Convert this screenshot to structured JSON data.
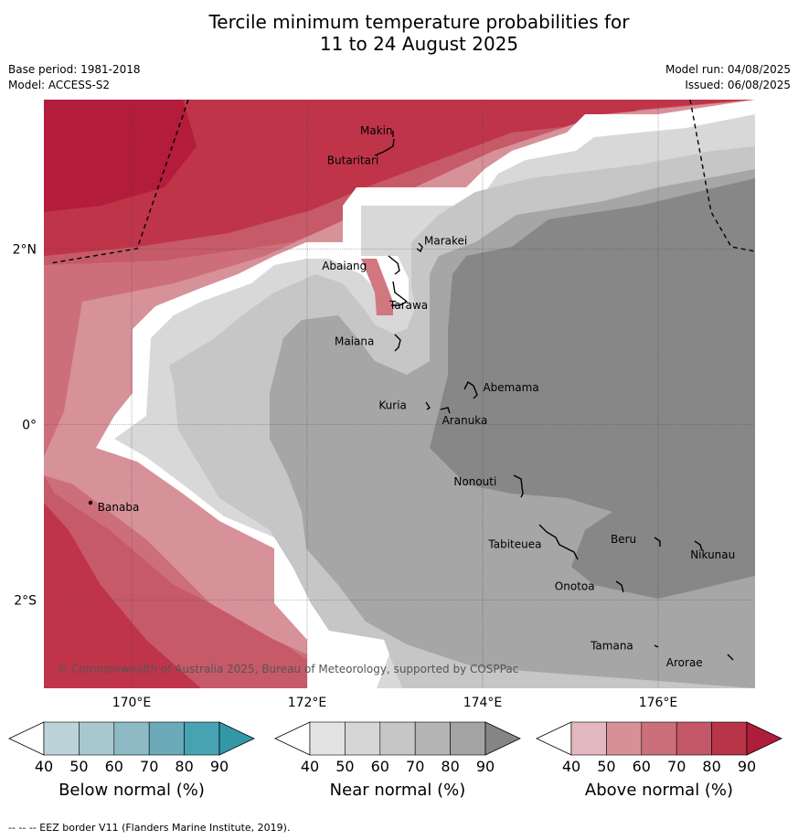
{
  "title_line1": "Tercile minimum temperature probabilities for",
  "title_line2": "11 to 24 August 2025",
  "base_period": "Base period: 1981-2018",
  "model": "Model: ACCESS-S2",
  "model_run": "Model run: 04/08/2025",
  "issued": "Issued: 06/08/2025",
  "copyright": "© Commonwealth of Australia 2025, Bureau of Meteorology, supported by COSPPac",
  "footer": "--  --  -- EEZ border V11 (Flanders Marine Institute, 2019).",
  "lon_ticks": [
    "170°E",
    "172°E",
    "174°E",
    "176°E"
  ],
  "lat_ticks": [
    "2°N",
    "0°",
    "2°S"
  ],
  "places": [
    {
      "name": "Makin",
      "lon": 173.0,
      "lat": 3.35
    },
    {
      "name": "Butaritari",
      "lon": 172.8,
      "lat": 3.05
    },
    {
      "name": "Marakei",
      "lon": 173.25,
      "lat": 2.0
    },
    {
      "name": "Abaiang",
      "lon": 172.95,
      "lat": 1.85
    },
    {
      "name": "Tarawa",
      "lon": 173.0,
      "lat": 1.4
    },
    {
      "name": "Maiana",
      "lon": 173.0,
      "lat": 0.95
    },
    {
      "name": "Abemama",
      "lon": 173.9,
      "lat": 0.4
    },
    {
      "name": "Kuria",
      "lon": 173.4,
      "lat": 0.2
    },
    {
      "name": "Aranuka",
      "lon": 173.6,
      "lat": 0.17
    },
    {
      "name": "Nonouti",
      "lon": 174.4,
      "lat": -0.65
    },
    {
      "name": "Tabiteuea",
      "lon": 174.9,
      "lat": -1.3
    },
    {
      "name": "Beru",
      "lon": 176.0,
      "lat": -1.33
    },
    {
      "name": "Nikunau",
      "lon": 176.45,
      "lat": -1.36
    },
    {
      "name": "Onotoa",
      "lon": 175.55,
      "lat": -1.8
    },
    {
      "name": "Tamana",
      "lon": 175.98,
      "lat": -2.5
    },
    {
      "name": "Arorae",
      "lon": 176.8,
      "lat": -2.63
    },
    {
      "name": "Banaba",
      "lon": 169.55,
      "lat": -0.85
    }
  ],
  "colorbars": [
    {
      "title": "Below normal (%)",
      "ticks": [
        "40",
        "50",
        "60",
        "70",
        "80",
        "90"
      ],
      "colors": [
        "#ffffff",
        "#bcd3da",
        "#a8c8cf",
        "#8dbac4",
        "#6aaab9",
        "#47a2b1",
        "#3298a8"
      ]
    },
    {
      "title": "Near normal (%)",
      "ticks": [
        "40",
        "50",
        "60",
        "70",
        "80",
        "90"
      ],
      "colors": [
        "#ffffff",
        "#e3e3e3",
        "#d6d6d6",
        "#c6c6c6",
        "#b4b4b4",
        "#a3a3a3",
        "#858585"
      ]
    },
    {
      "title": "Above normal (%)",
      "ticks": [
        "40",
        "50",
        "60",
        "70",
        "80",
        "90"
      ],
      "colors": [
        "#ffffff",
        "#e4b8bf",
        "#d79098",
        "#cb6f7a",
        "#c45868",
        "#b83447",
        "#b01d3a"
      ]
    }
  ],
  "palette": {
    "above_80": "#b31c3b",
    "above_70": "#bf3449",
    "above_60": "#c65a68",
    "above_50": "#cd6f7b",
    "above_40": "#d79199",
    "near_40": "#d8d8d8",
    "near_50": "#c6c6c6",
    "near_60": "#a6a6a6",
    "near_70": "#878787",
    "white": "#ffffff"
  }
}
